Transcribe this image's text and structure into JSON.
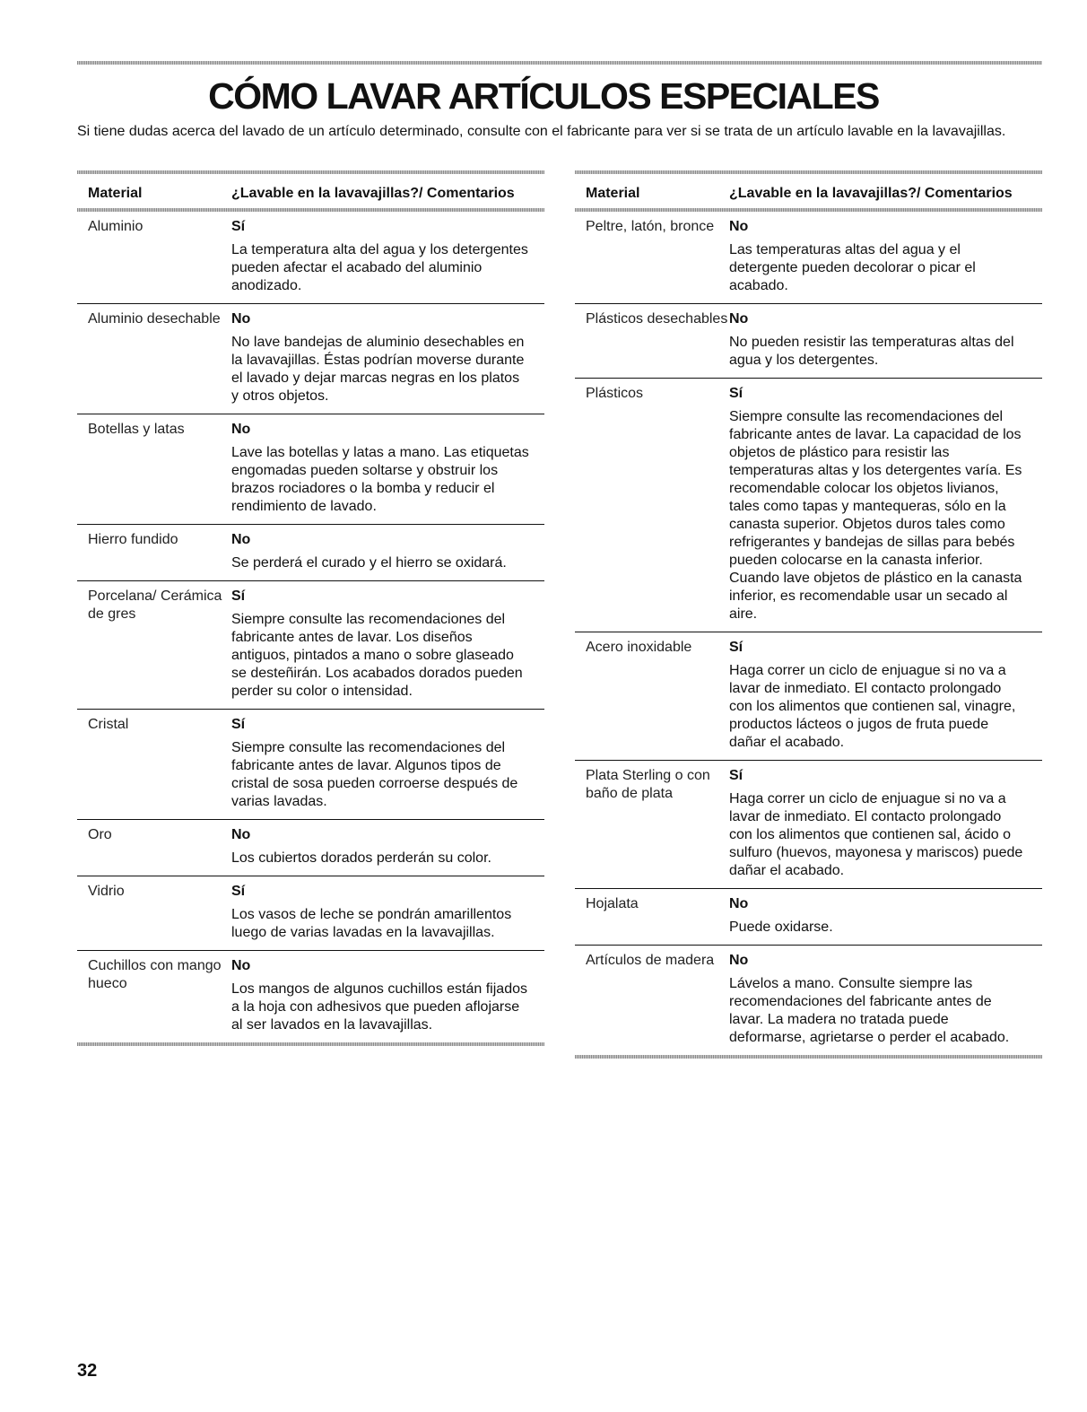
{
  "title": "CÓMO LAVAR ARTÍCULOS ESPECIALES",
  "intro": "Si tiene dudas acerca del lavado de un artículo determinado, consulte con el fabricante para ver si se trata de un artículo lavable en la lavavajillas.",
  "header": {
    "material": "Material",
    "comments": "¿Lavable en la lavavajillas?/ Comentarios"
  },
  "left_rows": [
    {
      "material": "Aluminio",
      "verdict": "Sí",
      "comment": "La temperatura alta del agua y los detergentes pueden afectar el acabado del aluminio anodizado."
    },
    {
      "material": "Aluminio desechable",
      "verdict": "No",
      "comment": "No lave bandejas de aluminio desechables en la lavavajillas. Éstas podrían moverse durante el lavado y dejar marcas negras en los platos y otros objetos."
    },
    {
      "material": "Botellas y latas",
      "verdict": "No",
      "comment": "Lave las botellas y latas a mano. Las etiquetas engomadas pueden soltarse y obstruir los brazos rociadores o la bomba y reducir el rendimiento de lavado."
    },
    {
      "material": "Hierro fundido",
      "verdict": "No",
      "comment": "Se perderá el curado y el hierro se oxidará."
    },
    {
      "material": "Porcelana/ Cerámica de gres",
      "verdict": "Sí",
      "comment": "Siempre consulte las recomendaciones del fabricante antes de lavar. Los diseños antiguos, pintados a mano o sobre glaseado se desteñirán. Los acabados dorados pueden perder su color o intensidad."
    },
    {
      "material": "Cristal",
      "verdict": "Sí",
      "comment": "Siempre consulte las recomendaciones del fabricante antes de lavar. Algunos tipos de cristal de sosa pueden corroerse después de varias lavadas."
    },
    {
      "material": "Oro",
      "verdict": "No",
      "comment": "Los cubiertos dorados perderán su color."
    },
    {
      "material": "Vidrio",
      "verdict": "Sí",
      "comment": "Los vasos de leche se pondrán amarillentos luego de varias lavadas en la lavavajillas."
    },
    {
      "material": "Cuchillos con mango hueco",
      "verdict": "No",
      "comment": "Los mangos de algunos cuchillos están fijados a la hoja con adhesivos que pueden aflojarse al ser lavados en la lavavajillas."
    }
  ],
  "right_rows": [
    {
      "material": "Peltre, latón, bronce",
      "verdict": "No",
      "comment": "Las temperaturas altas del agua y el detergente pueden decolorar o picar el acabado."
    },
    {
      "material": "Plásticos desechables",
      "verdict": "No",
      "comment": "No pueden resistir las temperaturas altas del agua y los detergentes."
    },
    {
      "material": "Plásticos",
      "verdict": "Sí",
      "comment": "Siempre consulte las recomendaciones del fabricante antes de lavar. La capacidad de los objetos de plástico para resistir las temperaturas altas y los detergentes varía. Es recomendable colocar los objetos livianos, tales como tapas y mantequeras, sólo en la canasta superior. Objetos duros tales como refrigerantes y bandejas de sillas para bebés pueden colocarse en la canasta inferior. Cuando lave objetos de plástico en la canasta inferior, es recomendable usar un secado al aire."
    },
    {
      "material": "Acero inoxidable",
      "verdict": "Sí",
      "comment": "Haga correr un ciclo de enjuague si no va a lavar de inmediato. El contacto prolongado con los alimentos que contienen sal, vinagre, productos lácteos o jugos de fruta puede dañar el acabado."
    },
    {
      "material": "Plata Sterling o con baño de plata",
      "verdict": "Sí",
      "comment": "Haga correr un ciclo de enjuague si no va a lavar de inmediato. El contacto prolongado con los alimentos que contienen sal, ácido o sulfuro (huevos, mayonesa y mariscos) puede dañar el acabado."
    },
    {
      "material": "Hojalata",
      "verdict": "No",
      "comment": "Puede oxidarse."
    },
    {
      "material": "Artículos de madera",
      "verdict": "No",
      "comment": "Lávelos a mano. Consulte siempre las recomendaciones del fabricante antes de lavar. La madera no tratada puede deformarse, agrietarse o perder el acabado."
    }
  ],
  "page_number": "32"
}
